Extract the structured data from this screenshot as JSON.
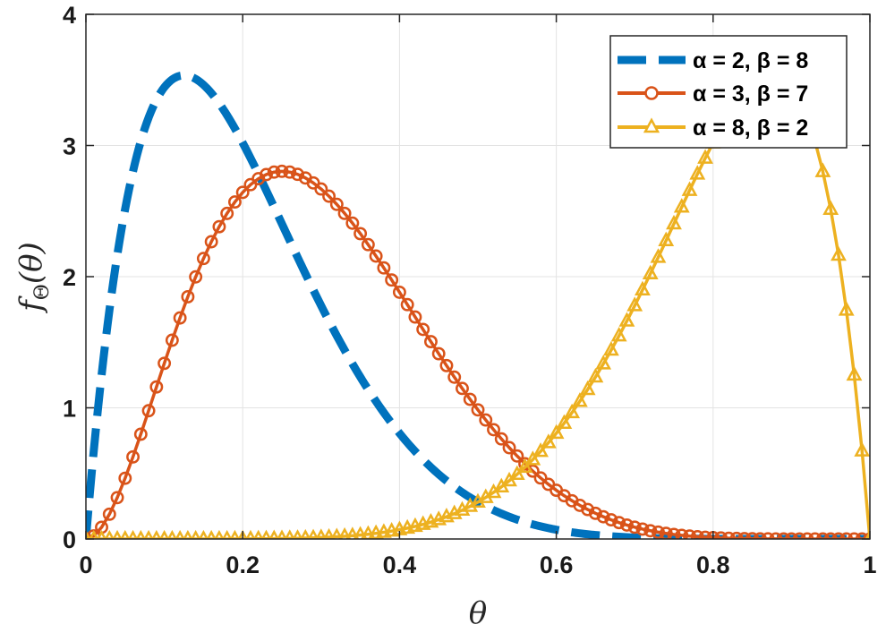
{
  "chart_data": {
    "type": "line",
    "xlabel": "θ",
    "ylabel_main": "f",
    "ylabel_sub": "Θ",
    "ylabel_arg": "(θ)",
    "xlim": [
      0,
      1
    ],
    "ylim": [
      0,
      4
    ],
    "x_ticks": [
      "0",
      "0.2",
      "0.4",
      "0.6",
      "0.8",
      "1"
    ],
    "y_ticks": [
      "0",
      "1",
      "2",
      "3",
      "4"
    ],
    "grid": true,
    "legend_position": "top-right",
    "series": [
      {
        "name": "α = 2, β = 8",
        "alpha": 2,
        "beta": 8,
        "color": "#0072BD",
        "style": "dashed",
        "marker": "none"
      },
      {
        "name": "α = 3, β = 7",
        "alpha": 3,
        "beta": 7,
        "color": "#D95319",
        "style": "solid",
        "marker": "circle"
      },
      {
        "name": "α = 8, β = 2",
        "alpha": 8,
        "beta": 2,
        "color": "#EDB120",
        "style": "solid",
        "marker": "triangle"
      }
    ]
  }
}
